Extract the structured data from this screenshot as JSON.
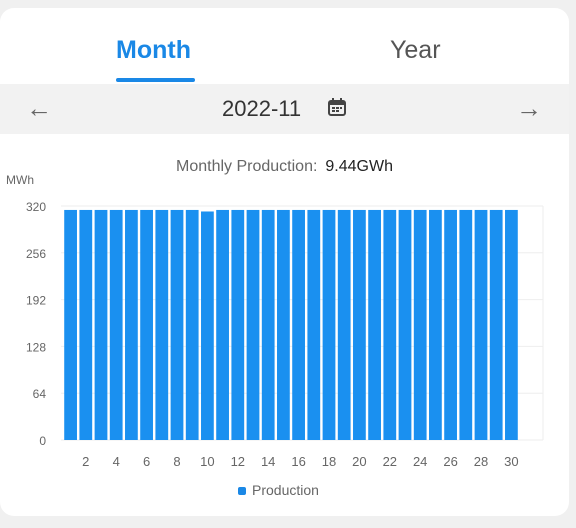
{
  "tabs": {
    "month": "Month",
    "year": "Year"
  },
  "date_nav": {
    "date": "2022-11",
    "prev_icon": "arrow-left-icon",
    "next_icon": "arrow-right-icon",
    "calendar_icon": "calendar-icon"
  },
  "summary": {
    "label": "Monthly Production:",
    "value": "9.44GWh"
  },
  "colors": {
    "accent": "#1a88e6",
    "bar": "#1a90f0"
  },
  "chart_data": {
    "type": "bar",
    "ylabel": "MWh",
    "ylim": [
      0,
      320
    ],
    "yticks": [
      0,
      64,
      128,
      192,
      256,
      320
    ],
    "categories": [
      1,
      2,
      3,
      4,
      5,
      6,
      7,
      8,
      9,
      10,
      11,
      12,
      13,
      14,
      15,
      16,
      17,
      18,
      19,
      20,
      21,
      22,
      23,
      24,
      25,
      26,
      27,
      28,
      29,
      30
    ],
    "xtick_labels": [
      "2",
      "4",
      "6",
      "8",
      "10",
      "12",
      "14",
      "16",
      "18",
      "20",
      "22",
      "24",
      "26",
      "28",
      "30"
    ],
    "series": [
      {
        "name": "Production",
        "values": [
          314.6,
          314.6,
          314.6,
          314.6,
          314.6,
          314.6,
          314.6,
          314.6,
          314.6,
          312.5,
          314.6,
          314.6,
          314.6,
          314.6,
          314.6,
          314.6,
          314.6,
          314.6,
          314.6,
          314.6,
          314.6,
          314.6,
          314.6,
          314.6,
          314.6,
          314.6,
          314.6,
          314.6,
          314.6,
          314.6
        ]
      }
    ],
    "legend_position": "bottom"
  }
}
